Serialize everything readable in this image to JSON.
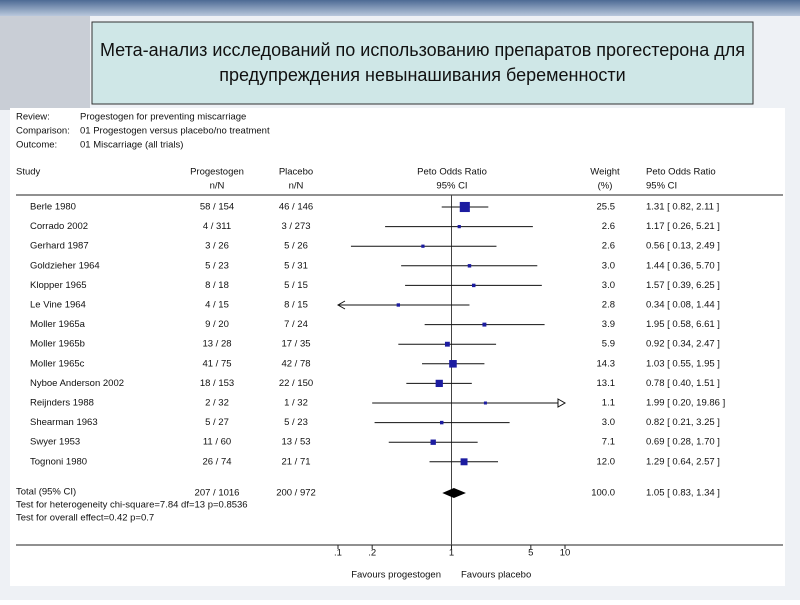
{
  "chart_data": {
    "type": "forest",
    "title": "Мета-анализ исследований по использованию препаратов прогестерона для предупреждения невынашивания беременности",
    "review_label": "Review:",
    "review": "Progestogen for preventing miscarriage",
    "comparison_label": "Comparison:",
    "comparison": "01 Progestogen versus placebo/no treatment",
    "outcome_label": "Outcome:",
    "outcome": "01 Miscarriage (all trials)",
    "headers": {
      "study": "Study",
      "treatment": [
        "Progestogen",
        "n/N"
      ],
      "control": [
        "Placebo",
        "n/N"
      ],
      "plot": [
        "Peto Odds Ratio",
        "95% CI"
      ],
      "weight": [
        "Weight",
        "(%)"
      ],
      "effect": [
        "Peto Odds Ratio",
        "95% CI"
      ]
    },
    "studies": [
      "Berle 1980",
      "Corrado 2002",
      "Gerhard 1987",
      "Goldzieher 1964",
      "Klopper 1965",
      "Le Vine 1964",
      "Moller 1965a",
      "Moller 1965b",
      "Moller 1965c",
      "Nyboe Anderson 2002",
      "Reijnders 1988",
      "Shearman 1963",
      "Swyer 1953",
      "Tognoni 1980"
    ],
    "treatment": [
      "58 / 154",
      "4 / 311",
      "3 / 26",
      "5 / 23",
      "8 / 18",
      "4 / 15",
      "9 / 20",
      "13 / 28",
      "41 / 75",
      "18 / 153",
      "2 / 32",
      "5 / 27",
      "11 / 60",
      "26 / 74"
    ],
    "control": [
      "46 / 146",
      "3 / 273",
      "5 / 26",
      "5 / 31",
      "5 / 15",
      "8 / 15",
      "7 / 24",
      "17 / 35",
      "42 / 78",
      "22 / 150",
      "1 / 32",
      "5 / 23",
      "13 / 53",
      "21 / 71"
    ],
    "weights": [
      25.5,
      2.6,
      2.6,
      3.0,
      3.0,
      2.8,
      3.9,
      5.9,
      14.3,
      13.1,
      1.1,
      3.0,
      7.1,
      12.0
    ],
    "weight_labels": [
      "25.5",
      "2.6",
      "2.6",
      "3.0",
      "3.0",
      "2.8",
      "3.9",
      "5.9",
      "14.3",
      "13.1",
      "1.1",
      "3.0",
      "7.1",
      "12.0"
    ],
    "or": [
      1.31,
      1.17,
      0.56,
      1.44,
      1.57,
      0.34,
      1.95,
      0.92,
      1.03,
      0.78,
      1.99,
      0.82,
      0.69,
      1.29
    ],
    "ci_low": [
      0.82,
      0.26,
      0.13,
      0.36,
      0.39,
      0.08,
      0.58,
      0.34,
      0.55,
      0.4,
      0.2,
      0.21,
      0.28,
      0.64
    ],
    "ci_high": [
      2.11,
      5.21,
      2.49,
      5.7,
      6.25,
      1.44,
      6.61,
      2.47,
      1.95,
      1.51,
      19.86,
      3.25,
      1.7,
      2.57
    ],
    "or_labels": [
      "1.31 [ 0.82, 2.11 ]",
      "1.17 [ 0.26, 5.21 ]",
      "0.56 [ 0.13, 2.49 ]",
      "1.44 [ 0.36, 5.70 ]",
      "1.57 [ 0.39, 6.25 ]",
      "0.34 [ 0.08, 1.44 ]",
      "1.95 [ 0.58, 6.61 ]",
      "0.92 [ 0.34, 2.47 ]",
      "1.03 [ 0.55, 1.95 ]",
      "0.78 [ 0.40, 1.51 ]",
      "1.99 [ 0.20, 19.86 ]",
      "0.82 [ 0.21, 3.25 ]",
      "0.69 [ 0.28, 1.70 ]",
      "1.29 [ 0.64, 2.57 ]"
    ],
    "total": {
      "label": "Total (95% CI)",
      "treatment": "207 / 1016",
      "control": "200 / 972",
      "weight": 100,
      "weight_label": "100.0",
      "or": 1.05,
      "ci_low": 0.83,
      "ci_high": 1.34,
      "or_label": "1.05 [ 0.83, 1.34 ]"
    },
    "heterogeneity": "Test for heterogeneity chi-square=7.84 df=13 p=0.8536",
    "overall_effect": "Test for overall effect=0.42 p=0.7",
    "log_x": true,
    "xlim": [
      0.1,
      10
    ],
    "xticks": [
      {
        "value": 0.1,
        "label": ".1"
      },
      {
        "value": 0.2,
        "label": ".2"
      },
      1,
      5,
      10
    ],
    "favours_left": "Favours progestogen",
    "favours_right": "Favours placebo",
    "color": "#1c1ca0"
  }
}
